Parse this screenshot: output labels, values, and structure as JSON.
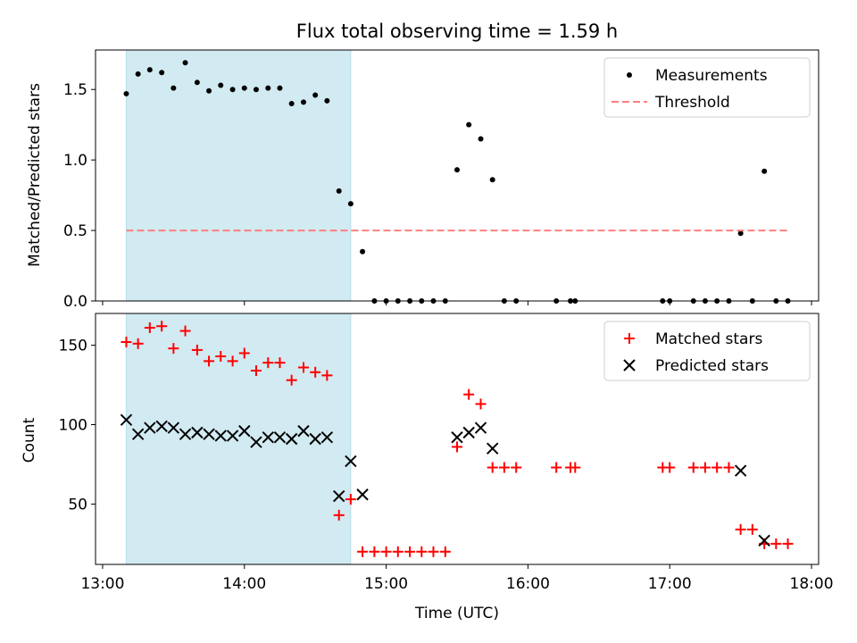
{
  "chart_data": [
    {
      "type": "scatter",
      "title": "Flux total observing time = 1.59 h",
      "ylabel": "Matched/Predicted stars",
      "xlabel": "",
      "x_unit": "hours UTC",
      "xlim": [
        12.95,
        18.05
      ],
      "ylim": [
        0,
        1.78
      ],
      "yticks": [
        0.0,
        0.5,
        1.0,
        1.5
      ],
      "yticklabels": [
        "0.0",
        "0.5",
        "1.0",
        "1.5"
      ],
      "xticks": [
        13,
        14,
        15,
        16,
        17,
        18
      ],
      "show_xticklabels": false,
      "highlight_span": {
        "x0": 13.167,
        "x1": 14.75,
        "color": "#add8e6"
      },
      "legend": {
        "position": "upper right",
        "entries": [
          "Measurements",
          "Threshold"
        ]
      },
      "series": [
        {
          "name": "Measurements",
          "marker": "dot",
          "color": "#000000",
          "x": [
            13.167,
            13.25,
            13.333,
            13.417,
            13.5,
            13.583,
            13.667,
            13.75,
            13.833,
            13.917,
            14.0,
            14.083,
            14.167,
            14.25,
            14.333,
            14.417,
            14.5,
            14.583,
            14.667,
            14.75,
            14.833,
            14.917,
            15.0,
            15.083,
            15.167,
            15.25,
            15.333,
            15.417,
            15.5,
            15.583,
            15.667,
            15.75,
            15.833,
            15.917,
            16.2,
            16.3,
            16.333,
            16.95,
            17.0,
            17.167,
            17.25,
            17.333,
            17.417,
            17.5,
            17.583,
            17.667,
            17.75,
            17.833
          ],
          "y": [
            1.47,
            1.61,
            1.64,
            1.62,
            1.51,
            1.69,
            1.55,
            1.49,
            1.53,
            1.5,
            1.51,
            1.5,
            1.51,
            1.51,
            1.4,
            1.41,
            1.46,
            1.42,
            0.78,
            0.69,
            0.35,
            0.0,
            0.0,
            0.0,
            0.0,
            0.0,
            0.0,
            0.0,
            0.93,
            1.25,
            1.15,
            0.86,
            0.0,
            0.0,
            0.0,
            0.0,
            0.0,
            0.0,
            0.0,
            0.0,
            0.0,
            0.0,
            0.0,
            0.48,
            0.0,
            0.92,
            0.0,
            0.0
          ]
        },
        {
          "name": "Threshold",
          "line": "dashed",
          "color": "#ff7f7f",
          "x": [
            13.167,
            17.833
          ],
          "y": [
            0.5,
            0.5
          ]
        }
      ]
    },
    {
      "type": "scatter",
      "title": "",
      "ylabel": "Count",
      "xlabel": "Time (UTC)",
      "x_unit": "hours UTC",
      "xlim": [
        12.95,
        18.05
      ],
      "ylim": [
        12,
        170
      ],
      "yticks": [
        50,
        100,
        150
      ],
      "yticklabels": [
        "50",
        "100",
        "150"
      ],
      "xticks": [
        13,
        14,
        15,
        16,
        17,
        18
      ],
      "xticklabels": [
        "13:00",
        "14:00",
        "15:00",
        "16:00",
        "17:00",
        "18:00"
      ],
      "highlight_span": {
        "x0": 13.167,
        "x1": 14.75,
        "color": "#add8e6"
      },
      "legend": {
        "position": "upper right",
        "entries": [
          "Matched stars",
          "Predicted stars"
        ]
      },
      "series": [
        {
          "name": "Matched stars",
          "marker": "plus",
          "color": "#ff0000",
          "x": [
            13.167,
            13.25,
            13.333,
            13.417,
            13.5,
            13.583,
            13.667,
            13.75,
            13.833,
            13.917,
            14.0,
            14.083,
            14.167,
            14.25,
            14.333,
            14.417,
            14.5,
            14.583,
            14.667,
            14.75,
            14.833,
            14.917,
            15.0,
            15.083,
            15.167,
            15.25,
            15.333,
            15.417,
            15.5,
            15.583,
            15.667,
            15.75,
            15.833,
            15.917,
            16.2,
            16.3,
            16.333,
            16.95,
            17.0,
            17.167,
            17.25,
            17.333,
            17.417,
            17.5,
            17.583,
            17.667,
            17.75,
            17.833
          ],
          "y": [
            152,
            151,
            161,
            162,
            148,
            159,
            147,
            140,
            143,
            140,
            145,
            134,
            139,
            139,
            128,
            136,
            133,
            131,
            43,
            53,
            20,
            20,
            20,
            20,
            20,
            20,
            20,
            20,
            86,
            119,
            113,
            73,
            73,
            73,
            73,
            73,
            73,
            73,
            73,
            73,
            73,
            73,
            73,
            34,
            34,
            25,
            25,
            25
          ]
        },
        {
          "name": "Predicted stars",
          "marker": "x",
          "color": "#000000",
          "x": [
            13.167,
            13.25,
            13.333,
            13.417,
            13.5,
            13.583,
            13.667,
            13.75,
            13.833,
            13.917,
            14.0,
            14.083,
            14.167,
            14.25,
            14.333,
            14.417,
            14.5,
            14.583,
            14.667,
            14.75,
            14.833,
            15.5,
            15.583,
            15.667,
            15.75,
            17.5,
            17.667
          ],
          "y": [
            103,
            94,
            98,
            99,
            98,
            94,
            95,
            94,
            93,
            93,
            96,
            89,
            92,
            92,
            91,
            96,
            91,
            92,
            55,
            77,
            56,
            92,
            95,
            98,
            85,
            71,
            27
          ]
        }
      ]
    }
  ]
}
